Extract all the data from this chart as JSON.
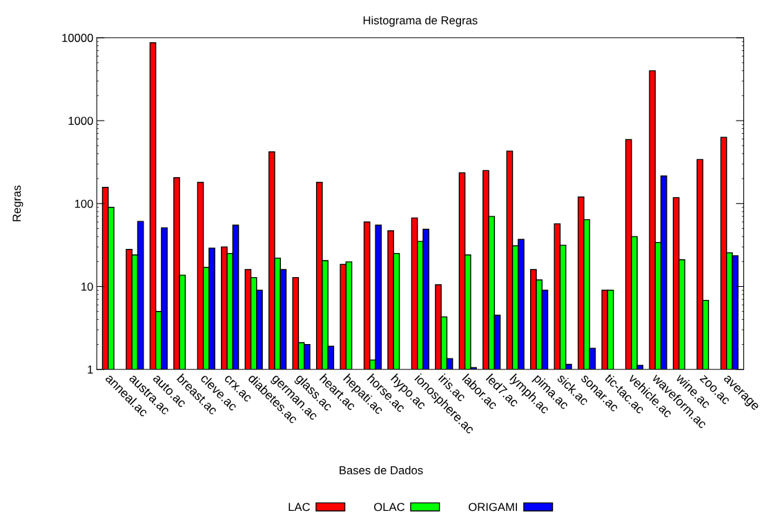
{
  "chart_data": {
    "type": "bar",
    "title": "Histograma de Regras",
    "xlabel": "Bases de Dados",
    "ylabel": "Regras",
    "categories": [
      "anneal.ac",
      "austra.ac",
      "auto.ac",
      "breast.ac",
      "cleve.ac",
      "crx.ac",
      "diabetes.ac",
      "german.ac",
      "glass.ac",
      "heart.ac",
      "hepati.ac",
      "horse.ac",
      "hypo.ac",
      "ionosphere.ac",
      "iris.ac",
      "labor.ac",
      "led7.ac",
      "lymph.ac",
      "pima.ac",
      "sick.ac",
      "sonar.ac",
      "tic-tac.ac",
      "vehicle.ac",
      "waveform.ac",
      "wine.ac",
      "zoo.ac",
      "average"
    ],
    "series": [
      {
        "name": "LAC",
        "color": "#ff0000",
        "values": [
          157,
          28,
          8700,
          205,
          180,
          30,
          16,
          420,
          12.8,
          180,
          18.5,
          60,
          47,
          67,
          10.5,
          235,
          250,
          430,
          16,
          57,
          120,
          9,
          590,
          4000,
          118,
          340,
          630
        ]
      },
      {
        "name": "OLAC",
        "color": "#00ff00",
        "values": [
          90,
          24,
          5,
          13.7,
          17,
          25,
          12.8,
          22,
          2.1,
          20.5,
          19.8,
          1.3,
          25,
          35,
          4.3,
          24,
          70,
          31,
          12,
          31.5,
          64,
          9,
          40,
          34,
          21,
          6.8,
          25.5
        ]
      },
      {
        "name": "ORIGAMI",
        "color": "#0000ff",
        "values": [
          null,
          61,
          51,
          null,
          29,
          55,
          9,
          16,
          2.0,
          1.9,
          null,
          55,
          null,
          49,
          1.35,
          1.05,
          4.5,
          37,
          9,
          1.15,
          1.8,
          null,
          1.12,
          215,
          null,
          null,
          23.5
        ]
      }
    ],
    "log": "y",
    "ylim": [
      1,
      10000
    ],
    "yticks": [
      1,
      10,
      100,
      1000,
      10000
    ],
    "grid": false,
    "legend": "bottom"
  }
}
